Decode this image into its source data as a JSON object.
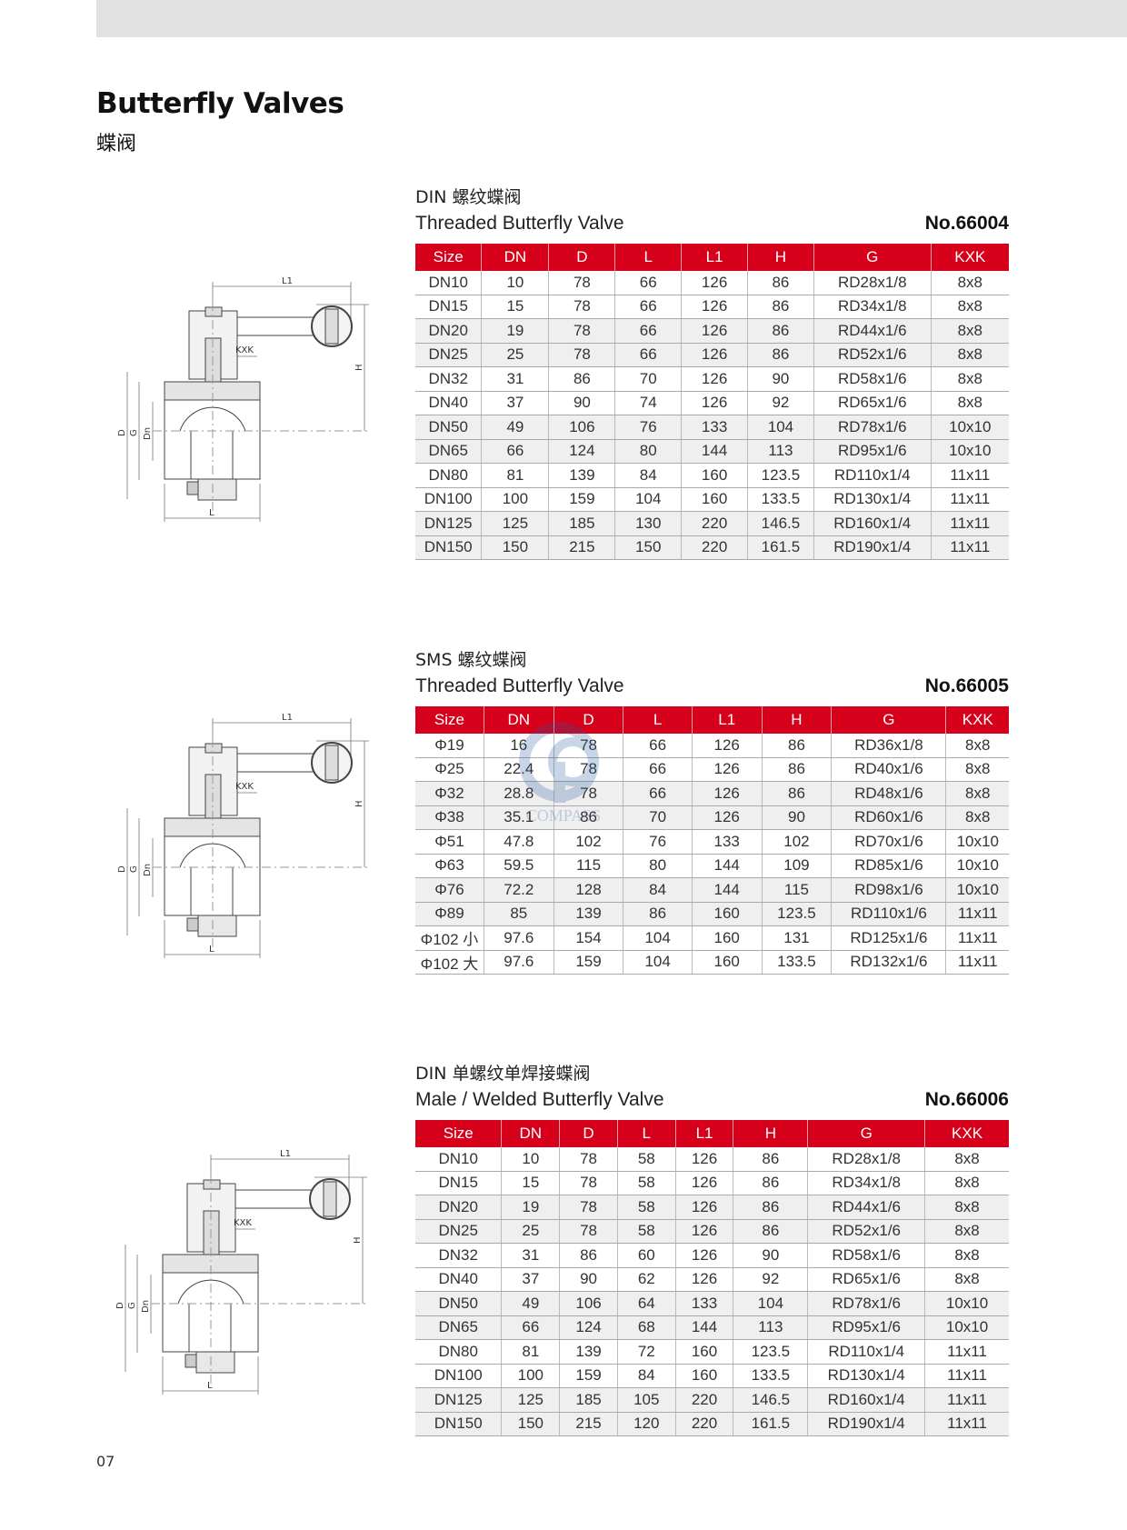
{
  "page": {
    "title": "Butterfly Valves",
    "subtitle": "蝶阀",
    "page_number": "07",
    "header_color": "#d7001b",
    "watermark": "COMPASS"
  },
  "drawing_labels": {
    "L1": "L1",
    "KXK": "KXK",
    "H": "H",
    "D": "D",
    "G": "G",
    "Dn": "Dn",
    "L": "L"
  },
  "sections": [
    {
      "title_cn": "DIN 螺纹蝶阀",
      "title_en": "Threaded Butterfly Valve",
      "number": "No.66004",
      "columns": [
        "Size",
        "DN",
        "D",
        "L",
        "L1",
        "H",
        "G",
        "KXK"
      ],
      "rows": [
        [
          "DN10",
          "10",
          "78",
          "66",
          "126",
          "86",
          "RD28x1/8",
          "8x8"
        ],
        [
          "DN15",
          "15",
          "78",
          "66",
          "126",
          "86",
          "RD34x1/8",
          "8x8"
        ],
        [
          "DN20",
          "19",
          "78",
          "66",
          "126",
          "86",
          "RD44x1/6",
          "8x8"
        ],
        [
          "DN25",
          "25",
          "78",
          "66",
          "126",
          "86",
          "RD52x1/6",
          "8x8"
        ],
        [
          "DN32",
          "31",
          "86",
          "70",
          "126",
          "90",
          "RD58x1/6",
          "8x8"
        ],
        [
          "DN40",
          "37",
          "90",
          "74",
          "126",
          "92",
          "RD65x1/6",
          "8x8"
        ],
        [
          "DN50",
          "49",
          "106",
          "76",
          "133",
          "104",
          "RD78x1/6",
          "10x10"
        ],
        [
          "DN65",
          "66",
          "124",
          "80",
          "144",
          "113",
          "RD95x1/6",
          "10x10"
        ],
        [
          "DN80",
          "81",
          "139",
          "84",
          "160",
          "123.5",
          "RD110x1/4",
          "11x11"
        ],
        [
          "DN100",
          "100",
          "159",
          "104",
          "160",
          "133.5",
          "RD130x1/4",
          "11x11"
        ],
        [
          "DN125",
          "125",
          "185",
          "130",
          "220",
          "146.5",
          "RD160x1/4",
          "11x11"
        ],
        [
          "DN150",
          "150",
          "215",
          "150",
          "220",
          "161.5",
          "RD190x1/4",
          "11x11"
        ]
      ]
    },
    {
      "title_cn": "SMS 螺纹蝶阀",
      "title_en": "Threaded Butterfly Valve",
      "number": "No.66005",
      "columns": [
        "Size",
        "DN",
        "D",
        "L",
        "L1",
        "H",
        "G",
        "KXK"
      ],
      "rows": [
        [
          "Φ19",
          "16",
          "78",
          "66",
          "126",
          "86",
          "RD36x1/8",
          "8x8"
        ],
        [
          "Φ25",
          "22.4",
          "78",
          "66",
          "126",
          "86",
          "RD40x1/6",
          "8x8"
        ],
        [
          "Φ32",
          "28.8",
          "78",
          "66",
          "126",
          "86",
          "RD48x1/6",
          "8x8"
        ],
        [
          "Φ38",
          "35.1",
          "86",
          "70",
          "126",
          "90",
          "RD60x1/6",
          "8x8"
        ],
        [
          "Φ51",
          "47.8",
          "102",
          "76",
          "133",
          "102",
          "RD70x1/6",
          "10x10"
        ],
        [
          "Φ63",
          "59.5",
          "115",
          "80",
          "144",
          "109",
          "RD85x1/6",
          "10x10"
        ],
        [
          "Φ76",
          "72.2",
          "128",
          "84",
          "144",
          "115",
          "RD98x1/6",
          "10x10"
        ],
        [
          "Φ89",
          "85",
          "139",
          "86",
          "160",
          "123.5",
          "RD110x1/6",
          "11x11"
        ],
        [
          "Φ102 小",
          "97.6",
          "154",
          "104",
          "160",
          "131",
          "RD125x1/6",
          "11x11"
        ],
        [
          "Φ102 大",
          "97.6",
          "159",
          "104",
          "160",
          "133.5",
          "RD132x1/6",
          "11x11"
        ]
      ]
    },
    {
      "title_cn": "DIN 单螺纹单焊接蝶阀",
      "title_en": "Male / Welded Butterfly Valve",
      "number": "No.66006",
      "columns": [
        "Size",
        "DN",
        "D",
        "L",
        "L1",
        "H",
        "G",
        "KXK"
      ],
      "rows": [
        [
          "DN10",
          "10",
          "78",
          "58",
          "126",
          "86",
          "RD28x1/8",
          "8x8"
        ],
        [
          "DN15",
          "15",
          "78",
          "58",
          "126",
          "86",
          "RD34x1/8",
          "8x8"
        ],
        [
          "DN20",
          "19",
          "78",
          "58",
          "126",
          "86",
          "RD44x1/6",
          "8x8"
        ],
        [
          "DN25",
          "25",
          "78",
          "58",
          "126",
          "86",
          "RD52x1/6",
          "8x8"
        ],
        [
          "DN32",
          "31",
          "86",
          "60",
          "126",
          "90",
          "RD58x1/6",
          "8x8"
        ],
        [
          "DN40",
          "37",
          "90",
          "62",
          "126",
          "92",
          "RD65x1/6",
          "8x8"
        ],
        [
          "DN50",
          "49",
          "106",
          "64",
          "133",
          "104",
          "RD78x1/6",
          "10x10"
        ],
        [
          "DN65",
          "66",
          "124",
          "68",
          "144",
          "113",
          "RD95x1/6",
          "10x10"
        ],
        [
          "DN80",
          "81",
          "139",
          "72",
          "160",
          "123.5",
          "RD110x1/4",
          "11x11"
        ],
        [
          "DN100",
          "100",
          "159",
          "84",
          "160",
          "133.5",
          "RD130x1/4",
          "11x11"
        ],
        [
          "DN125",
          "125",
          "185",
          "105",
          "220",
          "146.5",
          "RD160x1/4",
          "11x11"
        ],
        [
          "DN150",
          "150",
          "215",
          "120",
          "220",
          "161.5",
          "RD190x1/4",
          "11x11"
        ]
      ]
    }
  ]
}
